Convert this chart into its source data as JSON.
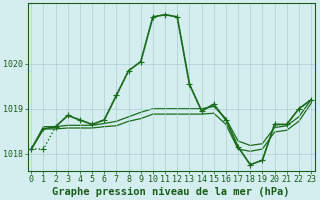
{
  "title": "Graphe pression niveau de la mer (hPa)",
  "series": [
    {
      "label": "dotted_spiky",
      "x": [
        0,
        1,
        2,
        3,
        4,
        5,
        6,
        7,
        8,
        9,
        10,
        11,
        12,
        13,
        14,
        15,
        16,
        17,
        18,
        19,
        20,
        21,
        22,
        23
      ],
      "y": [
        1018.1,
        1018.1,
        1018.6,
        1018.85,
        1018.75,
        1018.65,
        1018.75,
        1019.3,
        1019.85,
        1020.05,
        1021.05,
        1021.1,
        1021.05,
        1019.55,
        1018.95,
        1019.1,
        1018.75,
        1018.15,
        1017.75,
        1017.85,
        1018.65,
        1018.65,
        1019.0,
        1019.2
      ],
      "color": "#1a6b1a",
      "linestyle": ":",
      "linewidth": 1.0,
      "marker": "+",
      "markersize": 4
    },
    {
      "label": "solid_upper",
      "x": [
        0,
        1,
        2,
        3,
        4,
        5,
        6,
        7,
        8,
        9,
        10,
        11,
        12,
        13,
        14,
        15,
        16,
        17,
        18,
        19,
        20,
        21,
        22,
        23
      ],
      "y": [
        1018.1,
        1018.55,
        1018.6,
        1018.85,
        1018.75,
        1018.65,
        1018.75,
        1019.3,
        1019.85,
        1020.05,
        1021.05,
        1021.1,
        1021.05,
        1019.55,
        1018.95,
        1019.1,
        1018.75,
        1018.15,
        1017.75,
        1017.85,
        1018.65,
        1018.65,
        1019.0,
        1019.2
      ],
      "color": "#1a6b1a",
      "linestyle": "-",
      "linewidth": 1.2,
      "marker": "+",
      "markersize": 3
    },
    {
      "label": "solid_mid",
      "x": [
        0,
        1,
        2,
        3,
        4,
        5,
        6,
        7,
        8,
        9,
        10,
        11,
        12,
        13,
        14,
        15,
        16,
        17,
        18,
        19,
        20,
        21,
        22,
        23
      ],
      "y": [
        1018.1,
        1018.6,
        1018.6,
        1018.63,
        1018.63,
        1018.63,
        1018.67,
        1018.72,
        1018.82,
        1018.92,
        1019.0,
        1019.0,
        1019.0,
        1019.0,
        1019.0,
        1019.05,
        1018.78,
        1018.28,
        1018.18,
        1018.22,
        1018.58,
        1018.62,
        1018.82,
        1019.2
      ],
      "color": "#1a6b1a",
      "linestyle": "-",
      "linewidth": 0.9,
      "marker": null,
      "markersize": 0
    },
    {
      "label": "solid_lower",
      "x": [
        0,
        1,
        2,
        3,
        4,
        5,
        6,
        7,
        8,
        9,
        10,
        11,
        12,
        13,
        14,
        15,
        16,
        17,
        18,
        19,
        20,
        21,
        22,
        23
      ],
      "y": [
        1018.1,
        1018.55,
        1018.55,
        1018.57,
        1018.57,
        1018.57,
        1018.6,
        1018.62,
        1018.72,
        1018.78,
        1018.88,
        1018.88,
        1018.88,
        1018.88,
        1018.88,
        1018.9,
        1018.65,
        1018.1,
        1018.05,
        1018.1,
        1018.48,
        1018.52,
        1018.72,
        1019.12
      ],
      "color": "#1a6b1a",
      "linestyle": "-",
      "linewidth": 0.9,
      "marker": null,
      "markersize": 0
    }
  ],
  "ylim": [
    1017.62,
    1021.35
  ],
  "yticks": [
    1018,
    1019,
    1020
  ],
  "xlim": [
    -0.3,
    23.3
  ],
  "xticks": [
    0,
    1,
    2,
    3,
    4,
    5,
    6,
    7,
    8,
    9,
    10,
    11,
    12,
    13,
    14,
    15,
    16,
    17,
    18,
    19,
    20,
    21,
    22,
    23
  ],
  "grid_color": "#aacfcf",
  "grid_minor_color": "#c8e5e5",
  "bg_color": "#d4eef0",
  "text_color": "#1a5c1a",
  "spine_color": "#1a5c1a",
  "title_fontsize": 7.5,
  "tick_fontsize": 6.0
}
